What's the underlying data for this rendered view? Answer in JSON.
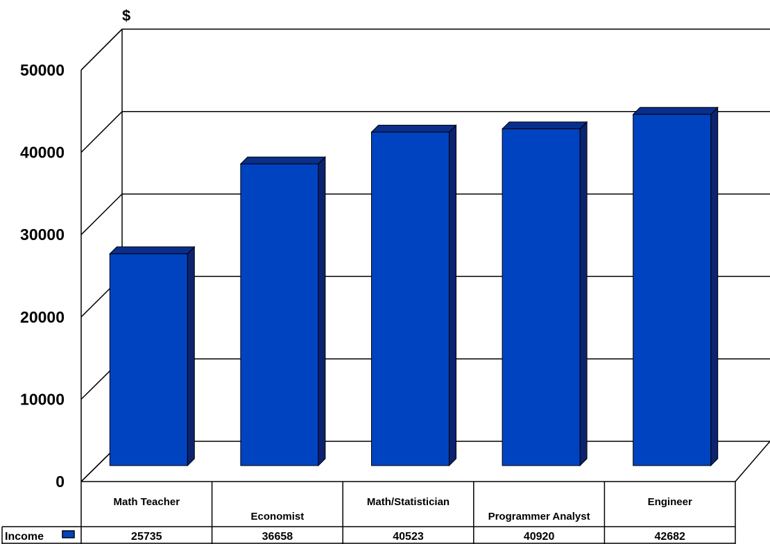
{
  "chart_data": {
    "type": "bar",
    "style": "3d-column",
    "ylabel": "$",
    "ylim": [
      0,
      50000
    ],
    "yticks": [
      0,
      10000,
      20000,
      30000,
      40000,
      50000
    ],
    "grid": true,
    "categories": [
      "Math Teacher",
      "Economist",
      "Math/Statistician",
      "Programmer Analyst",
      "Engineer"
    ],
    "series": [
      {
        "name": "Income",
        "values": [
          25735,
          36658,
          40523,
          40920,
          42682
        ]
      }
    ],
    "data_table": {
      "row_label": "Income",
      "values": [
        "25735",
        "36658",
        "40523",
        "40920",
        "42682"
      ]
    },
    "colors": {
      "bar_front": "#0043C0",
      "bar_top": "#0A2E8C",
      "bar_side": "#0C2370"
    }
  }
}
